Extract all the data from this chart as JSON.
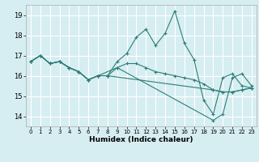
{
  "title": "",
  "xlabel": "Humidex (Indice chaleur)",
  "ylabel": "",
  "background_color": "#d6eef2",
  "grid_color": "#ffffff",
  "line_color": "#2d7d78",
  "xlim": [
    -0.5,
    23.5
  ],
  "ylim": [
    13.5,
    19.5
  ],
  "yticks": [
    14,
    15,
    16,
    17,
    18,
    19
  ],
  "xticks": [
    0,
    1,
    2,
    3,
    4,
    5,
    6,
    7,
    8,
    9,
    10,
    11,
    12,
    13,
    14,
    15,
    16,
    17,
    18,
    19,
    20,
    21,
    22,
    23
  ],
  "series": [
    {
      "x": [
        0,
        1,
        2,
        3,
        4,
        5,
        6,
        7,
        8,
        9,
        10,
        11,
        12,
        13,
        14,
        15,
        16,
        17,
        18,
        19,
        20,
        21,
        22,
        23
      ],
      "y": [
        16.7,
        17.0,
        16.6,
        16.7,
        16.4,
        16.2,
        15.8,
        16.0,
        16.0,
        16.7,
        17.1,
        17.9,
        18.3,
        17.5,
        18.1,
        19.2,
        17.6,
        16.8,
        14.8,
        14.1,
        15.9,
        16.1,
        15.5,
        15.4
      ]
    },
    {
      "x": [
        0,
        1,
        2,
        3,
        4,
        5,
        6,
        7,
        8,
        9,
        10,
        11,
        12,
        13,
        14,
        15,
        16,
        17,
        18,
        19,
        20,
        21,
        22,
        23
      ],
      "y": [
        16.7,
        17.0,
        16.6,
        16.7,
        16.4,
        16.2,
        15.8,
        16.0,
        16.0,
        16.4,
        16.6,
        16.6,
        16.4,
        16.2,
        16.1,
        16.0,
        15.9,
        15.8,
        15.6,
        15.3,
        15.2,
        15.2,
        15.3,
        15.4
      ]
    },
    {
      "x": [
        0,
        1,
        2,
        3,
        4,
        5,
        6,
        7,
        9,
        19,
        20,
        21,
        22,
        23
      ],
      "y": [
        16.7,
        17.0,
        16.6,
        16.7,
        16.4,
        16.2,
        15.8,
        16.0,
        16.4,
        13.8,
        14.1,
        15.9,
        16.1,
        15.5
      ]
    },
    {
      "x": [
        0,
        1,
        2,
        3,
        4,
        5,
        6,
        7,
        8,
        19,
        20,
        21,
        22,
        23
      ],
      "y": [
        16.7,
        17.0,
        16.6,
        16.7,
        16.4,
        16.2,
        15.8,
        16.0,
        16.0,
        15.3,
        15.2,
        15.2,
        15.3,
        15.4
      ]
    }
  ]
}
